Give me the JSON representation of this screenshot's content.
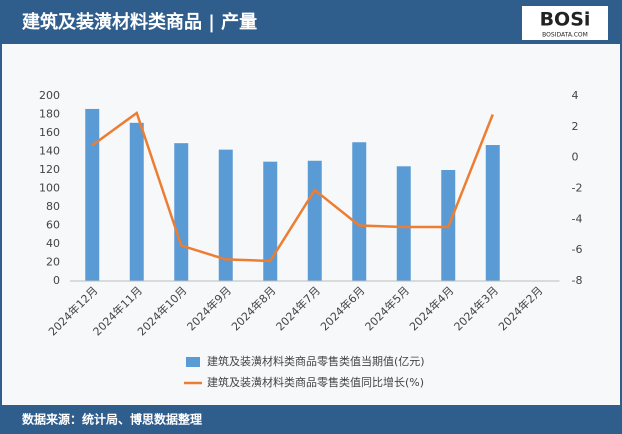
{
  "chart_data": {
    "type": "bar",
    "title": "建筑及装潢材料类商品 | 产量",
    "source": "数据来源：统计局、博思数据整理",
    "categories": [
      "2024年12月",
      "2024年11月",
      "2024年10月",
      "2024年9月",
      "2024年8月",
      "2024年7月",
      "2024年6月",
      "2024年5月",
      "2024年4月",
      "2024年3月",
      "2024年2月"
    ],
    "series": [
      {
        "name": "建筑及装潢材料类商品零售类值当期值(亿元)",
        "type": "bar",
        "color": "#5b9bd5",
        "values": [
          186,
          171,
          149,
          142,
          129,
          130,
          150,
          124,
          120,
          147,
          null
        ]
      },
      {
        "name": "建筑及装潢材料类商品零售类值同比增长(%)",
        "type": "line",
        "axis": "y2",
        "color": "#ed7d31",
        "values": [
          0.8,
          2.9,
          -5.7,
          -6.6,
          -6.7,
          -2.1,
          -4.4,
          -4.5,
          -4.5,
          2.8,
          null
        ]
      }
    ],
    "ylim": [
      0,
      200
    ],
    "yticks": [
      0,
      20,
      40,
      60,
      80,
      100,
      120,
      140,
      160,
      180,
      200
    ],
    "y2lim": [
      -8,
      4
    ],
    "y2ticks": [
      -8,
      -6,
      -4,
      -2,
      0,
      2,
      4
    ],
    "grid": false
  },
  "logo": {
    "text": "BOSi",
    "site": "BOSIDATA.COM"
  }
}
